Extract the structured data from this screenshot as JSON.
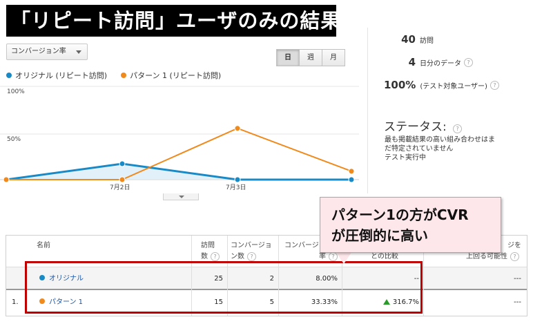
{
  "banner": {
    "title": "「リピート訪問」ユーザのみの結果"
  },
  "toolbar": {
    "metric_select": "コンバージョン率",
    "periods": [
      "日",
      "週",
      "月"
    ],
    "active_period": "日"
  },
  "legend": {
    "original": {
      "label": "オリジナル (リピート訪問)",
      "color": "#1a8ac6"
    },
    "pattern": {
      "label": "パターン 1 (リピート訪問)",
      "color": "#f08a1c"
    }
  },
  "chart_data": {
    "type": "line",
    "x": [
      "",
      "7月2日",
      "7月3日",
      ""
    ],
    "y_ticks": [
      "100%",
      "50%"
    ],
    "ylim": [
      0,
      100
    ],
    "series": [
      {
        "name": "オリジナル (リピート訪問)",
        "color": "#1a8ac6",
        "values": [
          0,
          17,
          0,
          0
        ]
      },
      {
        "name": "パターン 1 (リピート訪問)",
        "color": "#f08a1c",
        "values": [
          0,
          0,
          55,
          9
        ]
      }
    ]
  },
  "summary": {
    "visits_num": "40",
    "visits_label": "訪問",
    "days_num": "4",
    "days_label": "日分のデータ",
    "pct_num": "100%",
    "pct_label": "(テスト対象ユーザー)",
    "help": "?"
  },
  "status": {
    "title": "ステータス:",
    "line1": "最も掲載結果の高い組み合わせはま",
    "line2": "だ特定されていません",
    "line3": "テスト実行中"
  },
  "table": {
    "headers": {
      "name": "名前",
      "visits_1": "訪問",
      "visits_2": "数",
      "conv_1": "コンバージョ",
      "conv_2": "ン数",
      "rate_1": "コンバージョ",
      "rate_2": "率",
      "compare": "との比較",
      "beat_1": "ジを",
      "beat_2": "上回る可能性"
    },
    "rows": [
      {
        "index": "",
        "name": "オリジナル",
        "visits": "25",
        "conversions": "2",
        "rate": "8.00%",
        "compare": "--",
        "beat": "---",
        "dot": "#1a8ac6"
      },
      {
        "index": "1.",
        "name": "パターン 1",
        "visits": "15",
        "conversions": "5",
        "rate": "33.33%",
        "compare": "316.7%",
        "beat": "---",
        "dot": "#f08a1c"
      }
    ]
  },
  "callout": {
    "line1": "パターン1の方がCVR",
    "line2": "が圧倒的に高い"
  }
}
